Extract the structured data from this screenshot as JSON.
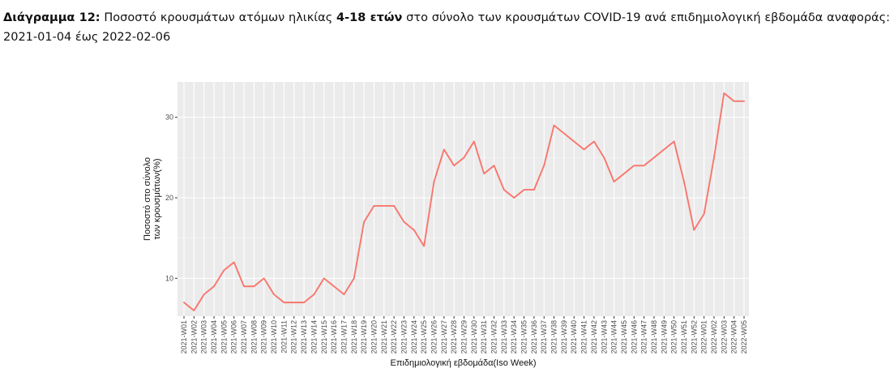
{
  "caption": {
    "label": "Διάγραμμα 12:",
    "part1": " Ποσοστό κρουσμάτων ατόμων ηλικίας ",
    "bold_age": "4-18 ετών",
    "part2": " στο σύνολο των κρουσμάτων COVID-19 ανά επιδημιολογική εβδομάδα αναφοράς: 2021-01-04 έως 2022-02-06"
  },
  "chart_data": {
    "type": "line",
    "xlabel": "Επιδημιολογική εβδομάδα(Iso Week)",
    "ylabel_line1": "Ποσοστό στο σύνολο",
    "ylabel_line2": "των κρουσμάτων(%)",
    "ylim": [
      5.3,
      34.4
    ],
    "yticks": [
      10,
      20,
      30
    ],
    "grid": true,
    "panel_background": "#ebebeb",
    "series": [
      {
        "color": "#f8766d",
        "values": [
          7,
          6,
          8,
          9,
          11,
          12,
          9,
          9,
          10,
          8,
          7,
          7,
          7,
          8,
          10,
          9,
          8,
          10,
          17,
          19,
          19,
          19,
          17,
          16,
          14,
          22,
          26,
          24,
          25,
          27,
          23,
          24,
          21,
          20,
          21,
          21,
          24,
          29,
          28,
          27,
          26,
          27,
          25,
          22,
          23,
          24,
          24,
          25,
          26,
          27,
          22,
          16,
          18,
          25,
          33,
          32,
          32
        ]
      }
    ],
    "categories": [
      "2021-W01",
      "2021-W02",
      "2021-W03",
      "2021-W04",
      "2021-W05",
      "2021-W06",
      "2021-W07",
      "2021-W08",
      "2021-W09",
      "2021-W10",
      "2021-W11",
      "2021-W12",
      "2021-W13",
      "2021-W14",
      "2021-W15",
      "2021-W16",
      "2021-W17",
      "2021-W18",
      "2021-W19",
      "2021-W20",
      "2021-W21",
      "2021-W22",
      "2021-W23",
      "2021-W24",
      "2021-W25",
      "2021-W26",
      "2021-W27",
      "2021-W28",
      "2021-W29",
      "2021-W30",
      "2021-W31",
      "2021-W32",
      "2021-W33",
      "2021-W34",
      "2021-W35",
      "2021-W36",
      "2021-W37",
      "2021-W38",
      "2021-W39",
      "2021-W40",
      "2021-W41",
      "2021-W42",
      "2021-W43",
      "2021-W44",
      "2021-W45",
      "2021-W46",
      "2021-W47",
      "2021-W48",
      "2021-W49",
      "2021-W50",
      "2021-W51",
      "2021-W52",
      "2022-W01",
      "2022-W02",
      "2022-W03",
      "2022-W04",
      "2022-W05"
    ]
  }
}
